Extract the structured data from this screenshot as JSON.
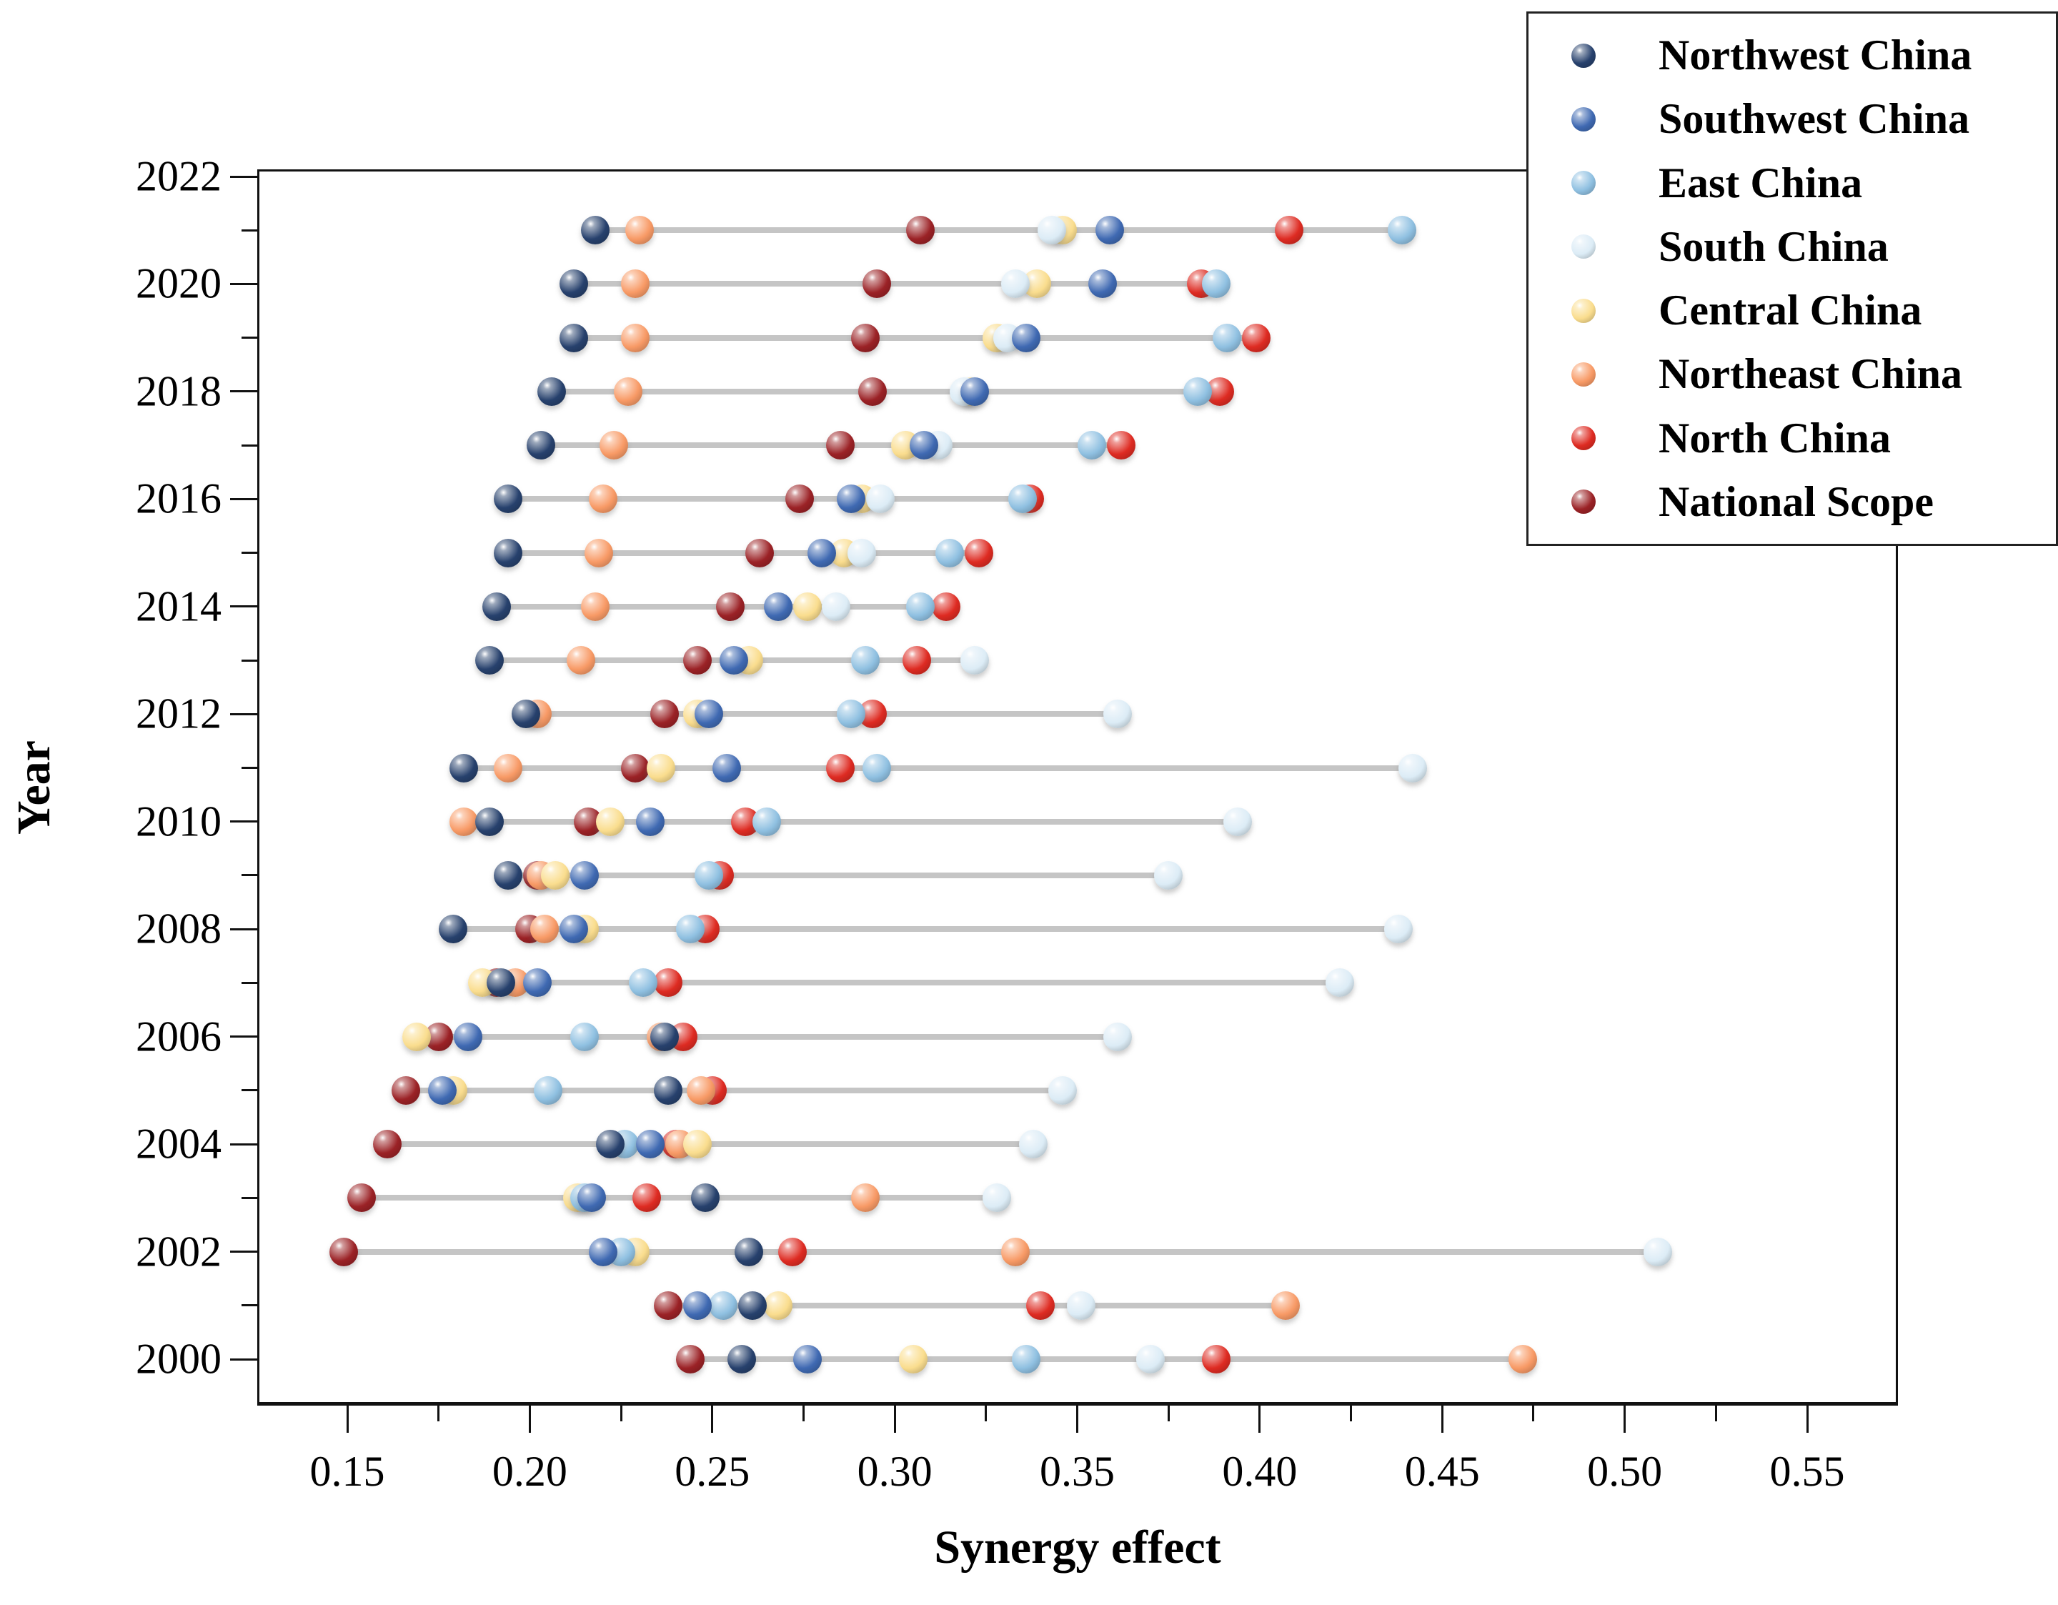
{
  "figure": {
    "x_axis_title": "Synergy effect",
    "y_axis_title": "Year"
  },
  "chart_data": {
    "type": "scatter",
    "subtype": "horizontal-dot-plot",
    "title": "",
    "xlabel": "Synergy effect",
    "ylabel": "Year",
    "xlim": [
      0.125,
      0.575
    ],
    "x_major_ticks": [
      0.15,
      0.2,
      0.25,
      0.3,
      0.35,
      0.4,
      0.45,
      0.5,
      0.55
    ],
    "x_minor_ticks": [
      0.175,
      0.225,
      0.275,
      0.325,
      0.375,
      0.425,
      0.475,
      0.525
    ],
    "x_tick_format": "0.00",
    "ylim": [
      1999,
      2022.2
    ],
    "y_major_ticks": [
      2000,
      2002,
      2004,
      2006,
      2008,
      2010,
      2012,
      2014,
      2016,
      2018,
      2020,
      2022
    ],
    "y_minor_ticks": [
      2001,
      2003,
      2005,
      2007,
      2009,
      2011,
      2013,
      2015,
      2017,
      2019,
      2021
    ],
    "grid": false,
    "legend_position": "top-right",
    "connector_color": "#c5c5c5",
    "frame_color": "#111111",
    "years": [
      2000,
      2001,
      2002,
      2003,
      2004,
      2005,
      2006,
      2007,
      2008,
      2009,
      2010,
      2011,
      2012,
      2013,
      2014,
      2015,
      2016,
      2017,
      2018,
      2019,
      2020,
      2021
    ],
    "series": [
      {
        "name": "Northwest China",
        "color": "#27416d",
        "values": [
          0.258,
          0.261,
          0.26,
          0.248,
          0.222,
          0.238,
          0.237,
          0.192,
          0.179,
          0.194,
          0.189,
          0.182,
          0.199,
          0.189,
          0.191,
          0.194,
          0.194,
          0.203,
          0.206,
          0.212,
          0.212,
          0.218
        ]
      },
      {
        "name": "Southwest China",
        "color": "#3f69b2",
        "values": [
          0.276,
          0.246,
          0.22,
          0.217,
          0.233,
          0.176,
          0.183,
          0.202,
          0.212,
          0.215,
          0.233,
          0.254,
          0.249,
          0.256,
          0.268,
          0.28,
          0.288,
          0.308,
          0.322,
          0.336,
          0.357,
          0.359
        ]
      },
      {
        "name": "East China",
        "color": "#8fc0e1",
        "values": [
          0.336,
          0.253,
          0.225,
          0.215,
          0.226,
          0.205,
          0.215,
          0.231,
          0.244,
          0.249,
          0.265,
          0.295,
          0.288,
          0.292,
          0.307,
          0.315,
          0.335,
          0.354,
          0.383,
          0.391,
          0.388,
          0.439
        ]
      },
      {
        "name": "South China",
        "color": "#dcecf6",
        "values": [
          0.37,
          0.351,
          0.509,
          0.328,
          0.338,
          0.346,
          0.361,
          0.422,
          0.438,
          0.375,
          0.394,
          0.442,
          0.361,
          0.322,
          0.284,
          0.291,
          0.296,
          0.312,
          0.319,
          0.331,
          0.333,
          0.343
        ]
      },
      {
        "name": "Central China",
        "color": "#fadd8e",
        "values": [
          0.305,
          0.268,
          0.229,
          0.213,
          0.246,
          0.179,
          0.169,
          0.187,
          0.215,
          0.207,
          0.222,
          0.236,
          0.246,
          0.26,
          0.276,
          0.286,
          0.291,
          0.303,
          0.321,
          0.328,
          0.339,
          0.346
        ]
      },
      {
        "name": "Northeast China",
        "color": "#f89a66",
        "values": [
          0.472,
          0.407,
          0.333,
          0.292,
          0.241,
          0.247,
          0.236,
          0.196,
          0.204,
          0.203,
          0.182,
          0.194,
          0.202,
          0.214,
          0.218,
          0.219,
          0.22,
          0.223,
          0.227,
          0.229,
          0.229,
          0.23
        ]
      },
      {
        "name": "North China",
        "color": "#de2b22",
        "values": [
          0.388,
          0.34,
          0.272,
          0.232,
          0.24,
          0.25,
          0.242,
          0.238,
          0.248,
          0.252,
          0.259,
          0.285,
          0.294,
          0.306,
          0.314,
          0.323,
          0.337,
          0.362,
          0.389,
          0.399,
          0.384,
          0.408
        ]
      },
      {
        "name": "National Scope",
        "color": "#9b2226",
        "values": [
          0.244,
          0.238,
          0.149,
          0.154,
          0.161,
          0.166,
          0.175,
          0.191,
          0.2,
          0.202,
          0.216,
          0.229,
          0.237,
          0.246,
          0.255,
          0.263,
          0.274,
          0.285,
          0.294,
          0.292,
          0.295,
          0.307
        ]
      }
    ]
  }
}
